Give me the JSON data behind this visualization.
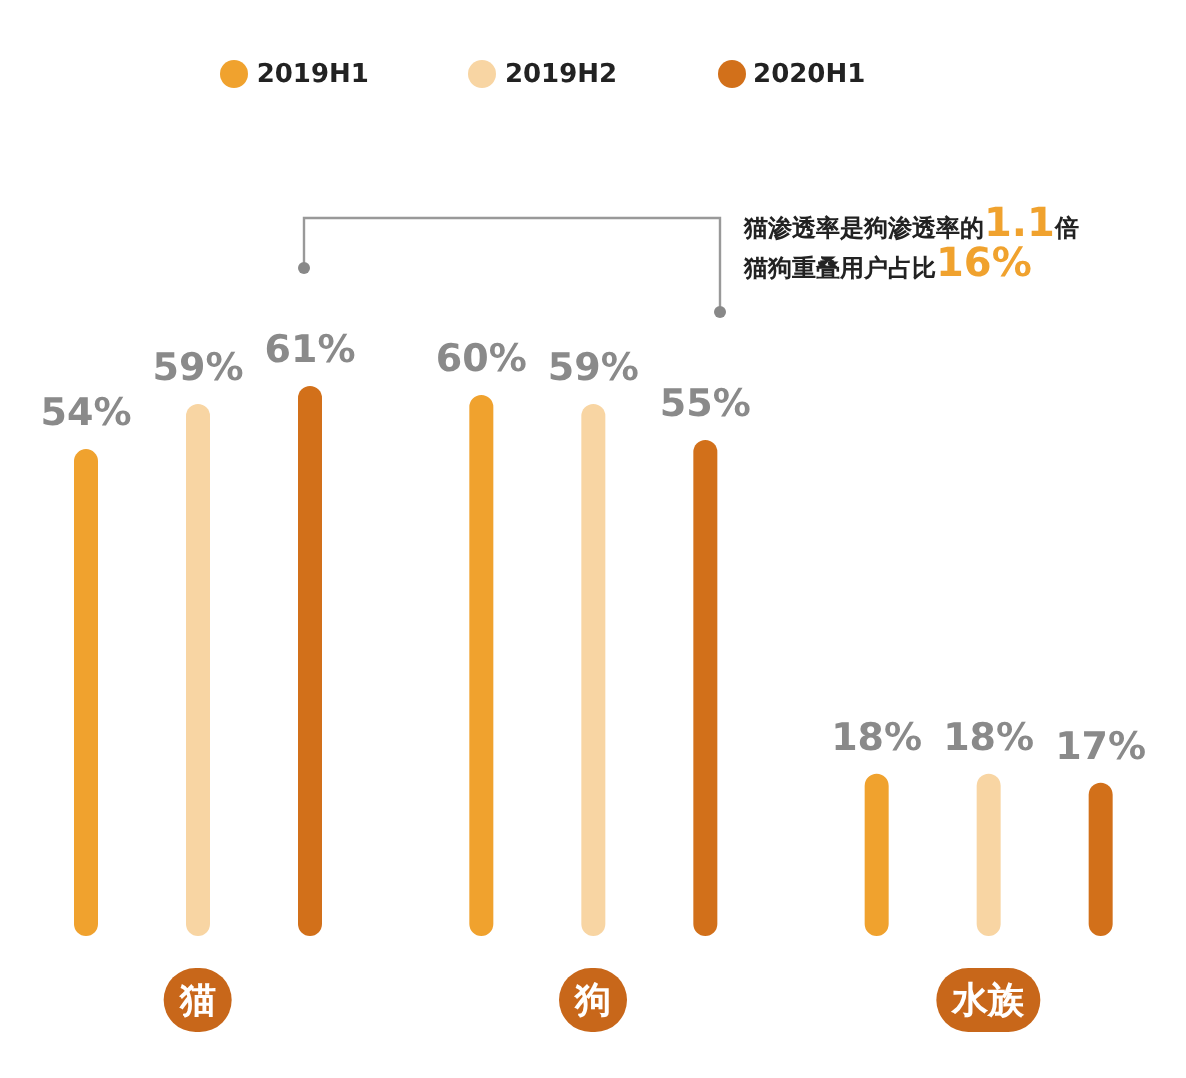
{
  "chart_data": {
    "type": "bar",
    "categories": [
      "猫",
      "狗",
      "水族"
    ],
    "series": [
      {
        "name": "2019H1",
        "color": "#f0a22e",
        "values": [
          54,
          60,
          18
        ],
        "value_labels": [
          "54%",
          "60%",
          "18%"
        ]
      },
      {
        "name": "2019H2",
        "color": "#f8d5a3",
        "values": [
          59,
          59,
          18
        ],
        "value_labels": [
          "59%",
          "59%",
          "18%"
        ]
      },
      {
        "name": "2020H1",
        "color": "#d2701a",
        "values": [
          61,
          55,
          17
        ],
        "value_labels": [
          "61%",
          "55%",
          "17%"
        ]
      }
    ],
    "annotations": [
      "猫渗透率是狗渗透率的1.1倍",
      "猫狗重叠用户占比16%"
    ],
    "legend": "top"
  }
}
